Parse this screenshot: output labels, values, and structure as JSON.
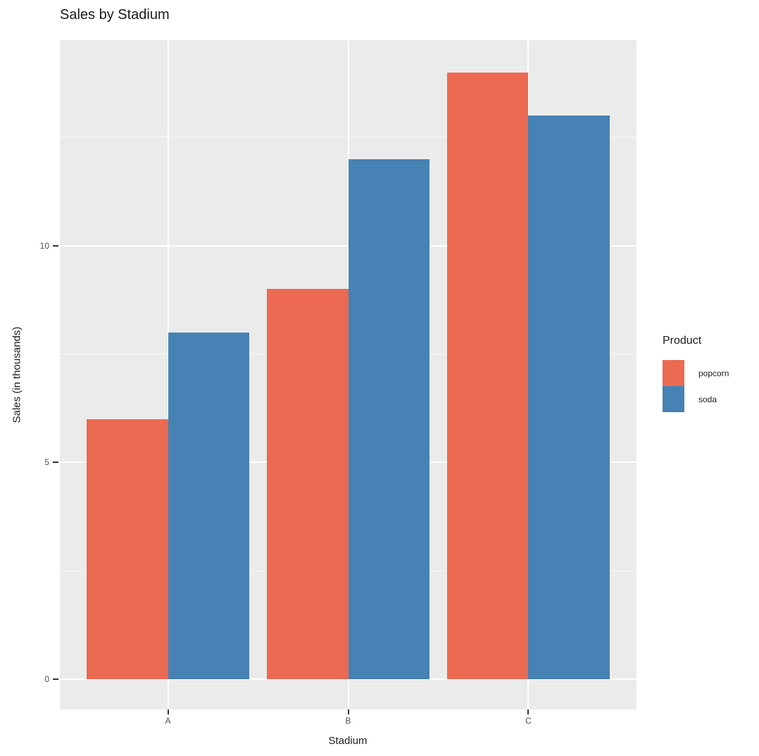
{
  "title": "Sales by Stadium",
  "x_axis": {
    "title": "Stadium",
    "tick_labels": [
      "A",
      "B",
      "C"
    ]
  },
  "y_axis": {
    "title": "Sales (in thousands)",
    "tick_labels": [
      "0",
      "5",
      "10"
    ]
  },
  "legend": {
    "title": "Product",
    "position": "right",
    "items": [
      {
        "label": "popcorn",
        "color": "#EC6A51"
      },
      {
        "label": "soda",
        "color": "#4682B4"
      }
    ]
  },
  "colors": {
    "popcorn": "#EC6A51",
    "soda": "#4682B4",
    "panel_background": "#EBEBEB",
    "gridline": "#FFFFFF",
    "axis_text": "#4D4D4D"
  },
  "chart_data": {
    "type": "bar",
    "mode": "grouped",
    "categories": [
      "A",
      "B",
      "C"
    ],
    "series": [
      {
        "name": "popcorn",
        "color": "#EC6A51",
        "values": [
          6,
          9,
          14
        ]
      },
      {
        "name": "soda",
        "color": "#4682B4",
        "values": [
          8,
          12,
          13
        ]
      }
    ],
    "title": "Sales by Stadium",
    "xlabel": "Stadium",
    "ylabel": "Sales (in thousands)",
    "ylim": [
      0,
      14
    ],
    "yticks_major": [
      0,
      5,
      10
    ],
    "yticks_minor": [
      2.5,
      7.5,
      12.5
    ],
    "grid": "on",
    "legend_position": "right"
  }
}
